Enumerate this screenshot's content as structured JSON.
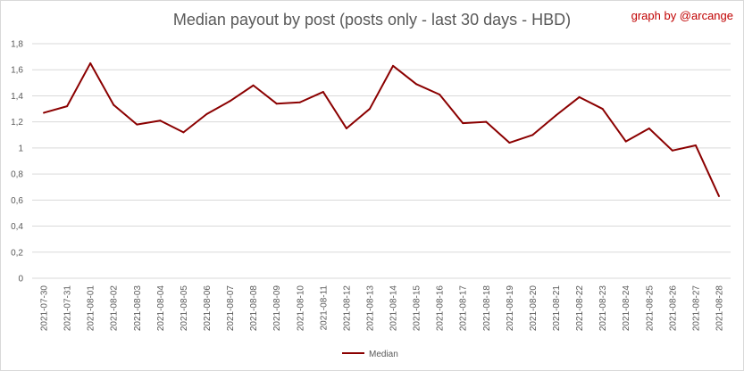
{
  "chart_data": {
    "type": "line",
    "title": "Median payout by post (posts only - last 30 days - HBD)",
    "annotation": "graph by @arcange",
    "xlabel": "",
    "ylabel": "",
    "ylim": [
      0,
      1.8
    ],
    "y_ticks": [
      "0",
      "0,2",
      "0,4",
      "0,6",
      "0,8",
      "1",
      "1,2",
      "1,4",
      "1,6",
      "1,8"
    ],
    "grid": true,
    "legend_position": "bottom",
    "line_color": "#8b0000",
    "categories": [
      "2021-07-30",
      "2021-07-31",
      "2021-08-01",
      "2021-08-02",
      "2021-08-03",
      "2021-08-04",
      "2021-08-05",
      "2021-08-06",
      "2021-08-07",
      "2021-08-08",
      "2021-08-09",
      "2021-08-10",
      "2021-08-11",
      "2021-08-12",
      "2021-08-13",
      "2021-08-14",
      "2021-08-15",
      "2021-08-16",
      "2021-08-17",
      "2021-08-18",
      "2021-08-19",
      "2021-08-20",
      "2021-08-21",
      "2021-08-22",
      "2021-08-23",
      "2021-08-24",
      "2021-08-25",
      "2021-08-26",
      "2021-08-27",
      "2021-08-28"
    ],
    "series": [
      {
        "name": "Median",
        "values": [
          1.27,
          1.32,
          1.65,
          1.33,
          1.18,
          1.21,
          1.12,
          1.26,
          1.36,
          1.48,
          1.34,
          1.35,
          1.43,
          1.15,
          1.3,
          1.63,
          1.49,
          1.41,
          1.19,
          1.2,
          1.04,
          1.1,
          1.25,
          1.39,
          1.3,
          1.05,
          1.15,
          0.98,
          1.02,
          0.63
        ]
      }
    ]
  }
}
